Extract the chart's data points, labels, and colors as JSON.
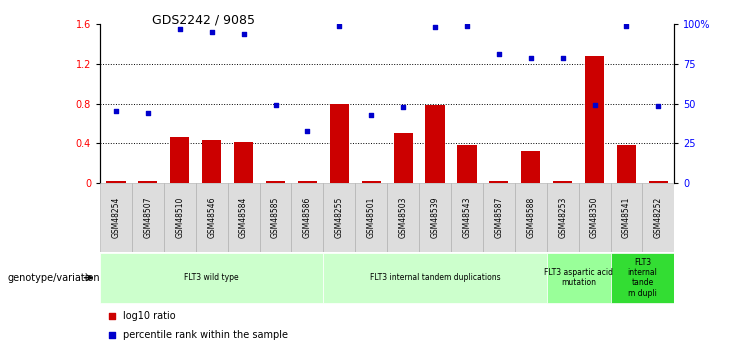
{
  "title": "GDS2242 / 9085",
  "samples": [
    "GSM48254",
    "GSM48507",
    "GSM48510",
    "GSM48546",
    "GSM48584",
    "GSM48585",
    "GSM48586",
    "GSM48255",
    "GSM48501",
    "GSM48503",
    "GSM48539",
    "GSM48543",
    "GSM48587",
    "GSM48588",
    "GSM48253",
    "GSM48350",
    "GSM48541",
    "GSM48252"
  ],
  "log10_ratio": [
    0.02,
    0.02,
    0.46,
    0.43,
    0.41,
    0.02,
    0.02,
    0.8,
    0.02,
    0.5,
    0.78,
    0.38,
    0.02,
    0.32,
    0.02,
    1.28,
    0.38,
    0.02
  ],
  "percentile_rank": [
    0.72,
    0.7,
    1.55,
    1.52,
    1.5,
    0.78,
    0.52,
    1.58,
    0.68,
    0.76,
    1.57,
    1.58,
    1.3,
    1.26,
    1.26,
    0.78,
    1.58,
    0.77
  ],
  "bar_color": "#cc0000",
  "dot_color": "#0000cc",
  "ylim_left": [
    0,
    1.6
  ],
  "ylim_right": [
    0,
    100
  ],
  "yticks_left": [
    0,
    0.4,
    0.8,
    1.2,
    1.6
  ],
  "yticks_right": [
    0,
    25,
    50,
    75,
    100
  ],
  "ytick_labels_right": [
    "0",
    "25",
    "50",
    "75",
    "100%"
  ],
  "hlines": [
    0.4,
    0.8,
    1.2
  ],
  "groups": [
    {
      "label": "FLT3 wild type",
      "start": 0,
      "end": 7,
      "color": "#ccffcc"
    },
    {
      "label": "FLT3 internal tandem duplications",
      "start": 7,
      "end": 14,
      "color": "#ccffcc"
    },
    {
      "label": "FLT3 aspartic acid\nmutation",
      "start": 14,
      "end": 16,
      "color": "#99ff99"
    },
    {
      "label": "FLT3\ninternal\ntande\nm dupli",
      "start": 16,
      "end": 18,
      "color": "#33dd33"
    }
  ],
  "genotype_label": "genotype/variation",
  "legend": [
    {
      "color": "#cc0000",
      "label": "log10 ratio"
    },
    {
      "color": "#0000cc",
      "label": "percentile rank within the sample"
    }
  ],
  "bg_color": "#f0f0f0"
}
